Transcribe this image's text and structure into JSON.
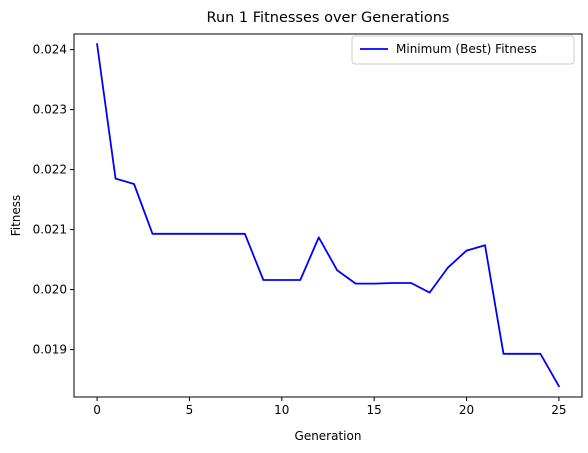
{
  "chart_data": {
    "type": "line",
    "title": "Run 1 Fitnesses over Generations",
    "xlabel": "Generation",
    "ylabel": "Fitness",
    "xlim": [
      -1.25,
      26.25
    ],
    "ylim": [
      0.01821,
      0.02426
    ],
    "xticks": [
      0,
      5,
      10,
      15,
      20,
      25
    ],
    "yticks": [
      0.019,
      0.02,
      0.021,
      0.022,
      0.023,
      0.024
    ],
    "ytick_labels": [
      "0.019",
      "0.020",
      "0.021",
      "0.022",
      "0.023",
      "0.024"
    ],
    "grid": false,
    "legend_position": "top-right",
    "series": [
      {
        "name": "Minimum (Best) Fitness",
        "color": "#0000ff",
        "x": [
          0,
          1,
          2,
          3,
          4,
          5,
          6,
          7,
          8,
          9,
          10,
          11,
          12,
          13,
          14,
          15,
          16,
          17,
          18,
          19,
          20,
          21,
          22,
          23,
          24,
          25
        ],
        "values": [
          0.02409,
          0.02185,
          0.02176,
          0.02093,
          0.02093,
          0.02093,
          0.02093,
          0.02093,
          0.02093,
          0.02016,
          0.02016,
          0.02016,
          0.02087,
          0.02032,
          0.0201,
          0.0201,
          0.02011,
          0.02011,
          0.01995,
          0.02037,
          0.02065,
          0.02074,
          0.01893,
          0.01893,
          0.01893,
          0.01839
        ]
      }
    ]
  }
}
